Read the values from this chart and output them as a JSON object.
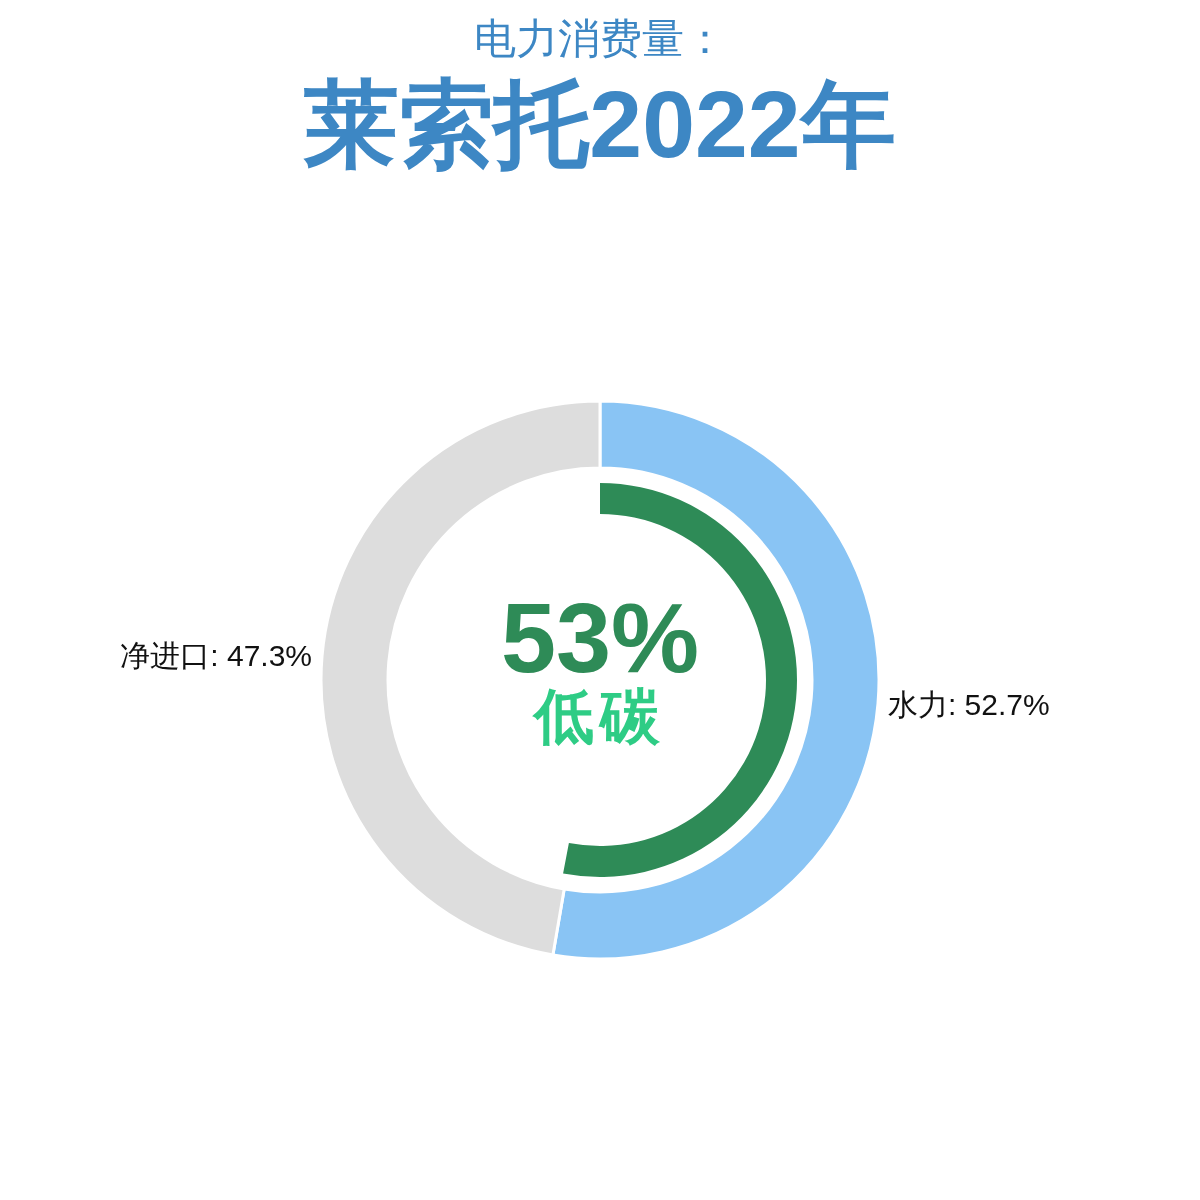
{
  "chart_data": [
    {
      "type": "donut",
      "subtitle": "电力消费量：",
      "title": "莱索托2022年",
      "categories": [
        "水力",
        "净进口"
      ],
      "values": [
        52.7,
        47.3
      ],
      "colors": [
        "#89c4f4",
        "#dddddd"
      ],
      "value_labels": [
        "52.7%",
        "47.3%"
      ]
    },
    {
      "type": "other",
      "categories": [
        "低碳"
      ],
      "values": [
        53
      ],
      "colors": [
        "#2e8b57"
      ],
      "value_labels": [
        "53%"
      ]
    }
  ]
}
